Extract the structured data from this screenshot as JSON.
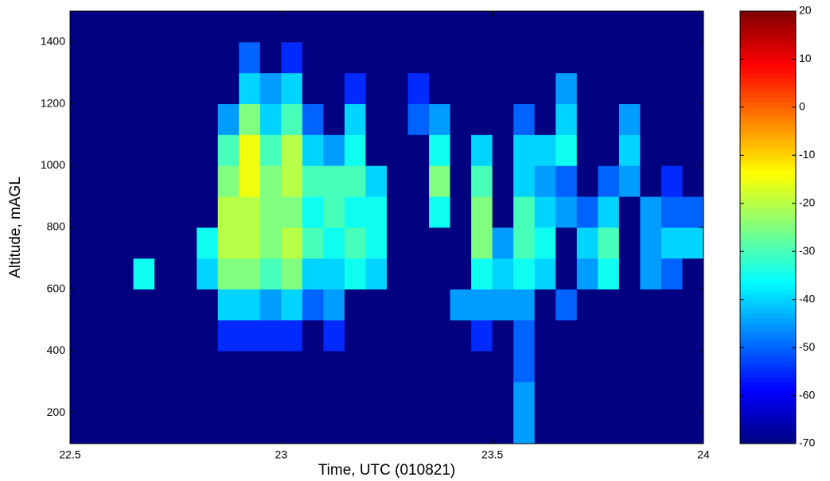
{
  "chart_data": {
    "type": "heatmap",
    "xlabel": "Time, UTC (010821)",
    "ylabel": "Altitude, mAGL",
    "xlim": [
      22.5,
      24
    ],
    "xticks": [
      22.5,
      23,
      23.5,
      24
    ],
    "ylim": [
      100,
      1500
    ],
    "yticks": [
      200,
      400,
      600,
      800,
      1000,
      1200,
      1400
    ],
    "zlim": [
      -70,
      20
    ],
    "zticks": [
      -70,
      -60,
      -50,
      -40,
      -30,
      -20,
      -10,
      0,
      10,
      20
    ],
    "colormap": "jet",
    "xbins": [
      22.5,
      22.55,
      22.6,
      22.65,
      22.7,
      22.75,
      22.8,
      22.85,
      22.9,
      22.95,
      23,
      23.05,
      23.1,
      23.15,
      23.2,
      23.25,
      23.3,
      23.35,
      23.4,
      23.45,
      23.5,
      23.55,
      23.6,
      23.65,
      23.7,
      23.75,
      23.8,
      23.85,
      23.9,
      23.95,
      24
    ],
    "ybins": [
      100,
      200,
      300,
      400,
      500,
      600,
      700,
      800,
      900,
      1000,
      1100,
      1200,
      1300,
      1400,
      1500
    ],
    "values": [
      [
        -70,
        -70,
        -70,
        -70,
        -70,
        -70,
        -70,
        -70,
        -70,
        -70,
        -70,
        -70,
        -70,
        -70,
        -70,
        -70,
        -70,
        -70,
        -70,
        -70,
        -70,
        -45,
        -70,
        -70,
        -70,
        -70,
        -70,
        -70,
        -70,
        -70
      ],
      [
        -70,
        -70,
        -70,
        -70,
        -70,
        -70,
        -70,
        -70,
        -70,
        -70,
        -70,
        -70,
        -70,
        -70,
        -70,
        -70,
        -70,
        -70,
        -70,
        -70,
        -70,
        -45,
        -70,
        -70,
        -70,
        -70,
        -70,
        -70,
        -70,
        -70
      ],
      [
        -70,
        -70,
        -70,
        -70,
        -70,
        -70,
        -70,
        -70,
        -70,
        -70,
        -70,
        -70,
        -70,
        -70,
        -70,
        -70,
        -70,
        -70,
        -70,
        -70,
        -70,
        -50,
        -70,
        -70,
        -70,
        -70,
        -70,
        -70,
        -70,
        -70
      ],
      [
        -70,
        -70,
        -70,
        -70,
        -70,
        -70,
        -70,
        -55,
        -55,
        -55,
        -55,
        -70,
        -55,
        -70,
        -70,
        -70,
        -70,
        -70,
        -70,
        -55,
        -70,
        -50,
        -70,
        -70,
        -70,
        -70,
        -70,
        -70,
        -70,
        -70
      ],
      [
        -70,
        -70,
        -70,
        -70,
        -70,
        -70,
        -70,
        -40,
        -40,
        -45,
        -40,
        -50,
        -45,
        -70,
        -70,
        -70,
        -70,
        -70,
        -45,
        -45,
        -45,
        -45,
        -70,
        -50,
        -70,
        -70,
        -70,
        -70,
        -70,
        -70
      ],
      [
        -70,
        -70,
        -70,
        -35,
        -70,
        -70,
        -40,
        -25,
        -25,
        -30,
        -25,
        -40,
        -40,
        -35,
        -40,
        -70,
        -70,
        -70,
        -70,
        -35,
        -40,
        -35,
        -40,
        -70,
        -45,
        -35,
        -70,
        -45,
        -50,
        -70
      ],
      [
        -70,
        -70,
        -70,
        -70,
        -70,
        -70,
        -35,
        -20,
        -20,
        -25,
        -20,
        -30,
        -35,
        -30,
        -35,
        -70,
        -70,
        -70,
        -70,
        -25,
        -45,
        -30,
        -35,
        -70,
        -40,
        -30,
        -70,
        -45,
        -40,
        -40
      ],
      [
        -70,
        -70,
        -70,
        -70,
        -70,
        -70,
        -70,
        -20,
        -20,
        -25,
        -25,
        -35,
        -30,
        -35,
        -35,
        -70,
        -70,
        -35,
        -70,
        -25,
        -70,
        -30,
        -40,
        -45,
        -50,
        -40,
        -70,
        -45,
        -50,
        -50
      ],
      [
        -70,
        -70,
        -70,
        -70,
        -70,
        -70,
        -70,
        -25,
        -15,
        -25,
        -20,
        -30,
        -30,
        -30,
        -40,
        -70,
        -70,
        -25,
        -70,
        -30,
        -70,
        -40,
        -45,
        -50,
        -70,
        -50,
        -45,
        -70,
        -55,
        -70
      ],
      [
        -70,
        -70,
        -70,
        -70,
        -70,
        -70,
        -70,
        -30,
        -15,
        -30,
        -20,
        -40,
        -45,
        -35,
        -70,
        -70,
        -70,
        -35,
        -70,
        -40,
        -70,
        -40,
        -40,
        -35,
        -70,
        -70,
        -40,
        -70,
        -70,
        -70
      ],
      [
        -70,
        -70,
        -70,
        -70,
        -70,
        -70,
        -70,
        -45,
        -25,
        -40,
        -30,
        -50,
        -70,
        -40,
        -70,
        -70,
        -50,
        -45,
        -70,
        -70,
        -70,
        -50,
        -70,
        -40,
        -70,
        -70,
        -45,
        -70,
        -70,
        -70
      ],
      [
        -70,
        -70,
        -70,
        -70,
        -70,
        -70,
        -70,
        -70,
        -40,
        -45,
        -40,
        -70,
        -70,
        -55,
        -70,
        -70,
        -55,
        -70,
        -70,
        -70,
        -70,
        -70,
        -70,
        -45,
        -70,
        -70,
        -70,
        -70,
        -70,
        -70
      ],
      [
        -70,
        -70,
        -70,
        -70,
        -70,
        -70,
        -70,
        -70,
        -50,
        -70,
        -55,
        -70,
        -70,
        -70,
        -70,
        -70,
        -70,
        -70,
        -70,
        -70,
        -70,
        -70,
        -70,
        -70,
        -70,
        -70,
        -70,
        -70,
        -70,
        -70
      ],
      [
        -70,
        -70,
        -70,
        -70,
        -70,
        -70,
        -70,
        -70,
        -70,
        -70,
        -70,
        -70,
        -70,
        -70,
        -70,
        -70,
        -70,
        -70,
        -70,
        -70,
        -70,
        -70,
        -70,
        -70,
        -70,
        -70,
        -70,
        -70,
        -70,
        -70
      ]
    ]
  }
}
